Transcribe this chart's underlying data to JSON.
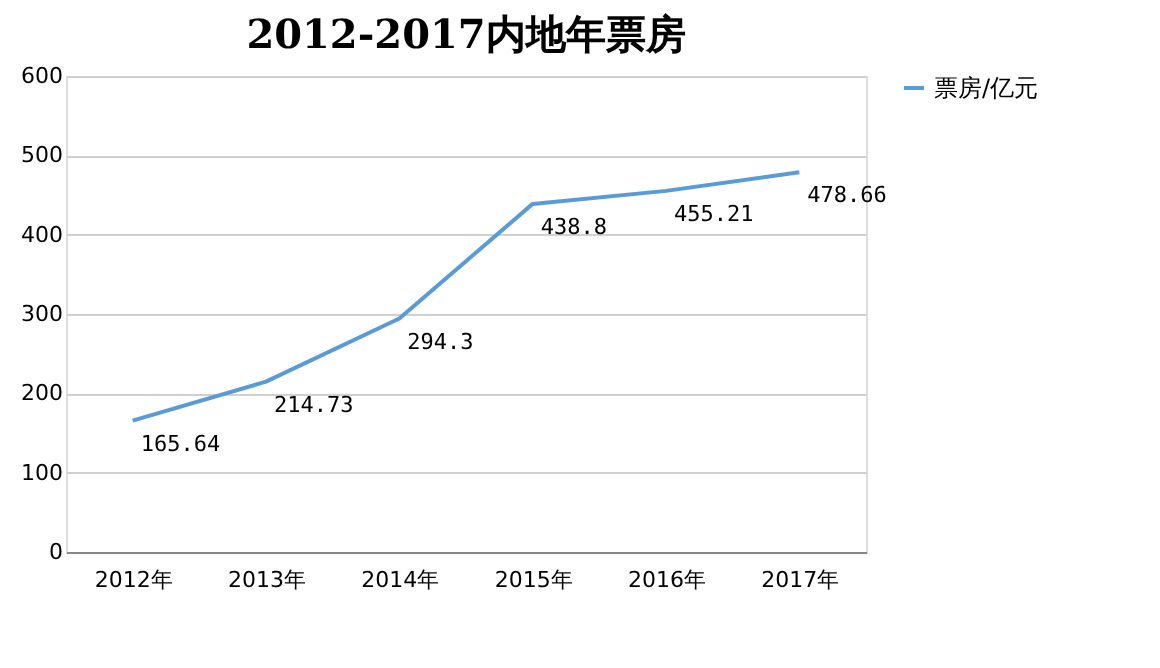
{
  "chart_data": {
    "type": "line",
    "title": "2012-2017内地年票房",
    "categories": [
      "2012年",
      "2013年",
      "2014年",
      "2015年",
      "2016年",
      "2017年"
    ],
    "series": [
      {
        "name": "票房/亿元",
        "color": "#5b9bd5",
        "values": [
          165.64,
          214.73,
          294.3,
          438.8,
          455.21,
          478.66
        ]
      }
    ],
    "ylim": [
      0,
      600
    ],
    "yticks": [
      0,
      100,
      200,
      300,
      400,
      500,
      600
    ],
    "grid": "y",
    "legend": "right",
    "data_labels": true,
    "marker": "none",
    "line_style": "solid"
  }
}
